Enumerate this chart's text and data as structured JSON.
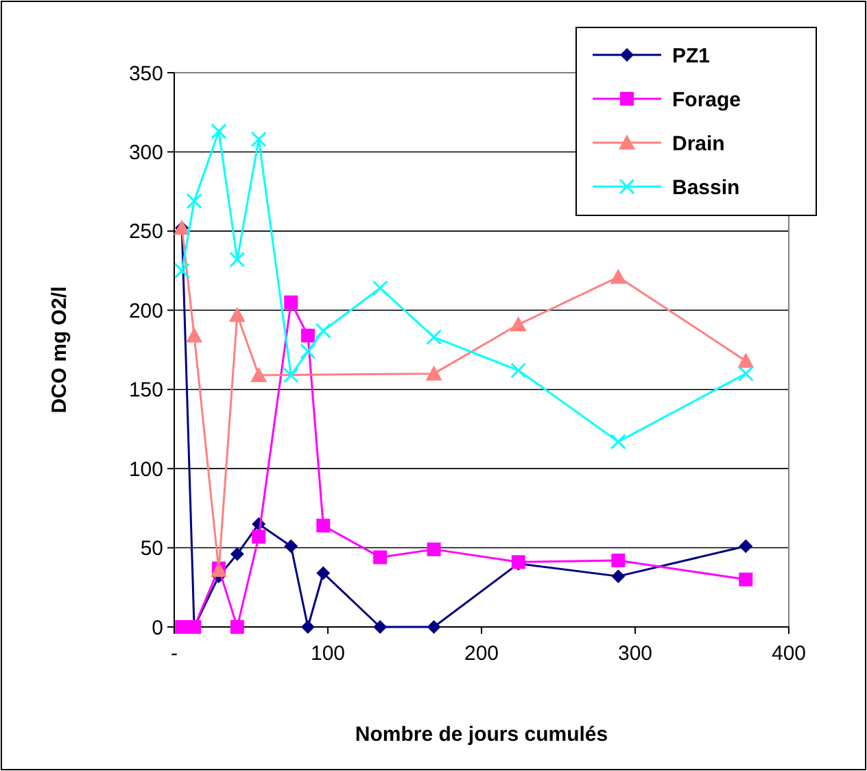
{
  "chart_data": {
    "type": "line",
    "xlabel": "Nombre de jours cumulés",
    "ylabel": "DCO mg O2/l",
    "xlim": [
      0,
      400
    ],
    "xticks": [
      {
        "value": 0,
        "label": "-"
      },
      100,
      200,
      300,
      400
    ],
    "ylim": [
      0,
      350
    ],
    "yticks": [
      0,
      50,
      100,
      150,
      200,
      250,
      300,
      350
    ],
    "grid": "y",
    "legend": "top right",
    "series": [
      {
        "name": "PZ1",
        "color": "#000080",
        "marker": "diamond",
        "x": [
          5,
          13,
          29,
          41,
          55,
          76,
          87,
          97,
          134,
          169,
          224,
          289,
          372
        ],
        "values": [
          252,
          0,
          32,
          46,
          65,
          51,
          0,
          34,
          0,
          0,
          40,
          32,
          51
        ]
      },
      {
        "name": "Forage",
        "color": "#ff00ff",
        "marker": "square",
        "x": [
          5,
          13,
          29,
          41,
          55,
          76,
          87,
          97,
          134,
          169,
          224,
          289,
          372
        ],
        "values": [
          0,
          0,
          37,
          0,
          57,
          205,
          184,
          64,
          44,
          49,
          41,
          42,
          30
        ]
      },
      {
        "name": "Drain",
        "color": "#ff8080",
        "marker": "triangle",
        "x": [
          5,
          13,
          29,
          41,
          55,
          169,
          224,
          289,
          372
        ],
        "values": [
          252,
          184,
          36,
          197,
          159,
          160,
          191,
          221,
          168
        ]
      },
      {
        "name": "Bassin",
        "color": "#00ffff",
        "marker": "cross",
        "x": [
          5,
          13,
          29,
          41,
          55,
          76,
          87,
          97,
          134,
          169,
          224,
          289,
          372
        ],
        "values": [
          225,
          269,
          313,
          232,
          308,
          159,
          174,
          187,
          214,
          183,
          162,
          117,
          160
        ]
      }
    ]
  }
}
